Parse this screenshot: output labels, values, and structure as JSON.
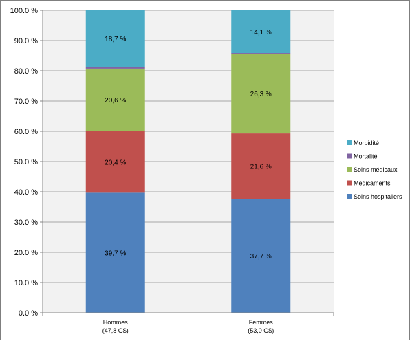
{
  "chart_data": {
    "type": "bar",
    "stacked": true,
    "categories": [
      {
        "line1": "Hommes",
        "line2": "(47,8 G$)"
      },
      {
        "line1": "Femmes",
        "line2": "(53,0 G$)"
      }
    ],
    "series": [
      {
        "name": "Soins hospitaliers",
        "color": "#4f81bd",
        "values": [
          39.7,
          37.7
        ],
        "labels": [
          "39,7 %",
          "37,7 %"
        ]
      },
      {
        "name": "Médicaments",
        "color": "#c0504d",
        "values": [
          20.4,
          21.6
        ],
        "labels": [
          "20,4 %",
          "21,6 %"
        ]
      },
      {
        "name": "Soins médicaux",
        "color": "#9bbb59",
        "values": [
          20.6,
          26.3
        ],
        "labels": [
          "20,6 %",
          "26,3 %"
        ]
      },
      {
        "name": "Mortalité",
        "color": "#8064a2",
        "values": [
          0.6,
          0.3
        ],
        "labels": [
          "",
          ""
        ]
      },
      {
        "name": "Morbidité",
        "color": "#4bacc6",
        "values": [
          18.7,
          14.1
        ],
        "labels": [
          "18,7 %",
          "14,1 %"
        ]
      }
    ],
    "ylim": [
      0,
      100
    ],
    "yticks": [
      {
        "value": 0,
        "label": "0.0 %"
      },
      {
        "value": 10,
        "label": "10.0 %"
      },
      {
        "value": 20,
        "label": "20.0 %"
      },
      {
        "value": 30,
        "label": "30.0 %"
      },
      {
        "value": 40,
        "label": "40.0 %"
      },
      {
        "value": 50,
        "label": "50.0 %"
      },
      {
        "value": 60,
        "label": "60.0 %"
      },
      {
        "value": 70,
        "label": "70.0 %"
      },
      {
        "value": 80,
        "label": "80.0 %"
      },
      {
        "value": 90,
        "label": "90.0 %"
      },
      {
        "value": 100,
        "label": "100.0 %"
      }
    ],
    "legend_position": "right",
    "legend_order": [
      "Morbidité",
      "Mortalité",
      "Soins médicaux",
      "Médicaments",
      "Soins hospitaliers"
    ],
    "plot_background": "#f2f2f2",
    "grid": true
  }
}
